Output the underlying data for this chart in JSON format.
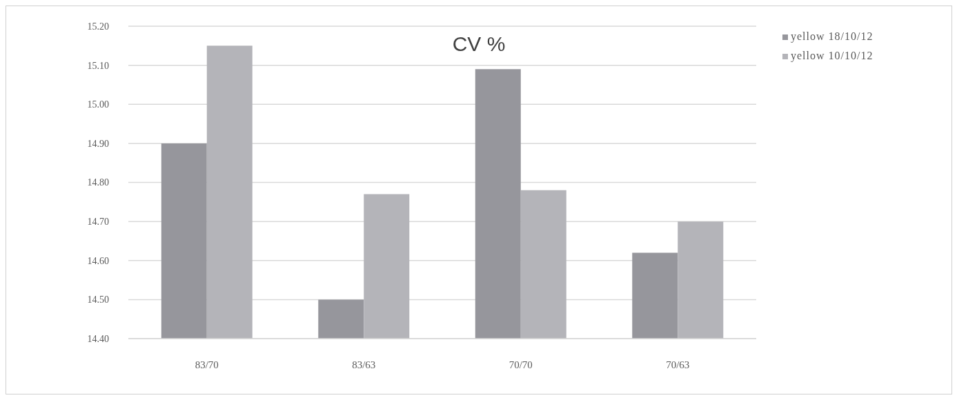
{
  "chart_data": {
    "type": "bar",
    "title": "CV %",
    "categories": [
      "83/70",
      "83/63",
      "70/70",
      "70/63"
    ],
    "series": [
      {
        "name": "yellow 18/10/12",
        "color": "#96969c",
        "values": [
          14.9,
          14.5,
          15.09,
          14.62
        ]
      },
      {
        "name": "yellow 10/10/12",
        "color": "#b4b4b9",
        "values": [
          15.15,
          14.77,
          14.78,
          14.7
        ]
      }
    ],
    "ylim": [
      14.4,
      15.2
    ],
    "yticks": [
      {
        "value": 14.4,
        "label": "14.40"
      },
      {
        "value": 14.5,
        "label": "14.50"
      },
      {
        "value": 14.6,
        "label": "14.60"
      },
      {
        "value": 14.7,
        "label": "14.70"
      },
      {
        "value": 14.8,
        "label": "14.80"
      },
      {
        "value": 14.9,
        "label": "14.90"
      },
      {
        "value": 15.0,
        "label": "15.00"
      },
      {
        "value": 15.1,
        "label": "15.10"
      },
      {
        "value": 15.2,
        "label": "15.20"
      }
    ],
    "grid": "y",
    "legend": "top right"
  }
}
